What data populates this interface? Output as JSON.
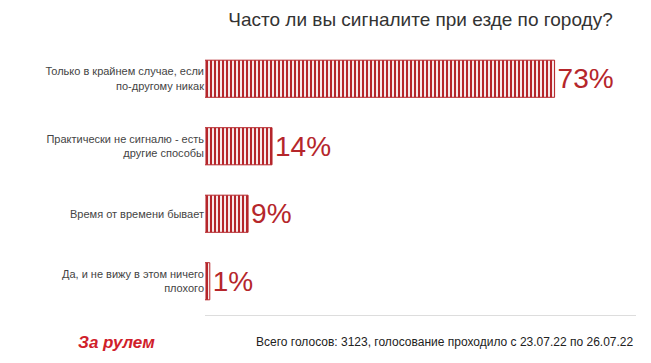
{
  "chart_data": {
    "type": "bar",
    "title": "Часто ли вы сигналите при езде по городу?",
    "orientation": "horizontal",
    "categories": [
      "Только в крайнем случае, если по-другому никак",
      "Практически не сигналю - есть другие способы",
      "Время от времени бывает",
      "Да, и не вижу в этом ничего плохого"
    ],
    "values": [
      73,
      14,
      9,
      1
    ],
    "value_labels": [
      "73%",
      "14%",
      "9%",
      "1%"
    ],
    "data_labels": true,
    "color": "#b5262b",
    "xlim": [
      0,
      90
    ],
    "tick_labels": "y",
    "grid": false,
    "annotations": [
      "За рулем",
      "Всего голосов: 3123, голосование проходило с 23.07.22 по 26.07.22"
    ]
  }
}
